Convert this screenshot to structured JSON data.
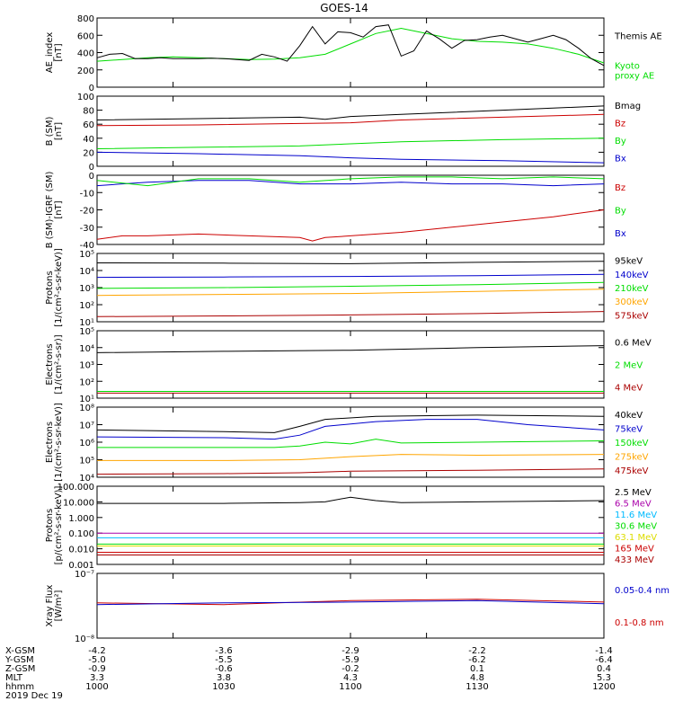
{
  "title": "GOES-14",
  "ephemeris": {
    "labels": [
      "X-GSM",
      "Y-GSM",
      "Z-GSM",
      "MLT",
      "hhmm",
      "2019 Dec 19"
    ],
    "columns": [
      [
        "-4.2",
        "-5.0",
        "-0.9",
        "3.3",
        "1000"
      ],
      [
        "-3.6",
        "-5.5",
        "-0.6",
        "3.8",
        "1030"
      ],
      [
        "-2.9",
        "-5.9",
        "-0.2",
        "4.3",
        "1100"
      ],
      [
        "-2.2",
        "-6.2",
        "0.1",
        "4.8",
        "1130"
      ],
      [
        "-1.4",
        "-6.4",
        "0.4",
        "5.3",
        "1200"
      ]
    ]
  },
  "colors": {
    "black": "#000000",
    "blue": "#0000cc",
    "green": "#00dd00",
    "red": "#cc0000",
    "orange": "#ffa500",
    "yellow": "#dddd00",
    "cyan": "#00bbff",
    "magenta": "#aa00aa",
    "darkred": "#aa0000"
  },
  "chart_data": [
    {
      "id": "ae",
      "type": "line",
      "ylabel": "AE_index\n[nT]",
      "ylim": [
        0,
        800
      ],
      "yscale": "linear",
      "yticks": [
        0,
        200,
        400,
        600,
        800
      ],
      "yticklabels": [
        "0",
        "200",
        "400",
        "600",
        "800"
      ],
      "xlim": [
        1000,
        1200
      ],
      "series": [
        {
          "name": "Kyoto\nproxy AE",
          "color": "green",
          "x": [
            1000,
            1010,
            1020,
            1030,
            1040,
            1050,
            1060,
            1070,
            1080,
            1090,
            1100,
            1110,
            1120,
            1130,
            1140,
            1150,
            1160,
            1170,
            1180,
            1190,
            1200
          ],
          "y": [
            300,
            320,
            340,
            350,
            340,
            330,
            320,
            325,
            340,
            380,
            500,
            620,
            680,
            620,
            560,
            530,
            520,
            500,
            450,
            380,
            280
          ]
        },
        {
          "name": "Themis AE",
          "color": "black",
          "x": [
            1000,
            1005,
            1010,
            1015,
            1020,
            1025,
            1030,
            1035,
            1040,
            1045,
            1050,
            1055,
            1060,
            1065,
            1070,
            1075,
            1080,
            1085,
            1090,
            1095,
            1100,
            1105,
            1110,
            1115,
            1120,
            1125,
            1130,
            1135,
            1140,
            1145,
            1150,
            1155,
            1160,
            1165,
            1170,
            1175,
            1180,
            1185,
            1190,
            1195,
            1200
          ],
          "y": [
            340,
            380,
            390,
            330,
            330,
            340,
            330,
            330,
            330,
            335,
            330,
            320,
            310,
            380,
            350,
            300,
            480,
            700,
            500,
            640,
            630,
            580,
            700,
            720,
            360,
            420,
            650,
            560,
            450,
            540,
            550,
            580,
            600,
            560,
            520,
            560,
            600,
            550,
            450,
            330,
            250
          ]
        }
      ]
    },
    {
      "id": "bsm",
      "type": "line",
      "ylabel": "B (SM)\n[nT]",
      "ylim": [
        0,
        100
      ],
      "yscale": "linear",
      "yticks": [
        0,
        20,
        40,
        60,
        80,
        100
      ],
      "yticklabels": [
        "0",
        "20",
        "40",
        "60",
        "80",
        "100"
      ],
      "xlim": [
        1000,
        1200
      ],
      "series": [
        {
          "name": "Bx",
          "color": "blue",
          "x": [
            1000,
            1040,
            1080,
            1100,
            1120,
            1160,
            1200
          ],
          "y": [
            20,
            18,
            15,
            12,
            10,
            8,
            5
          ]
        },
        {
          "name": "By",
          "color": "green",
          "x": [
            1000,
            1040,
            1080,
            1100,
            1120,
            1160,
            1200
          ],
          "y": [
            25,
            27,
            29,
            32,
            35,
            38,
            40
          ]
        },
        {
          "name": "Bz",
          "color": "red",
          "x": [
            1000,
            1040,
            1080,
            1100,
            1120,
            1160,
            1200
          ],
          "y": [
            58,
            59,
            61,
            62,
            66,
            70,
            74
          ]
        },
        {
          "name": "Bmag",
          "color": "black",
          "x": [
            1000,
            1040,
            1080,
            1090,
            1100,
            1120,
            1160,
            1200
          ],
          "y": [
            66,
            68,
            70,
            67,
            71,
            74,
            80,
            86
          ]
        }
      ]
    },
    {
      "id": "bigrf",
      "type": "line",
      "ylabel": "B (SM)-IGRF (SM)\n[nT]",
      "ylim": [
        -40,
        0
      ],
      "yscale": "linear",
      "yticks": [
        -40,
        -30,
        -20,
        -10,
        0
      ],
      "yticklabels": [
        "-40",
        "-30",
        "-20",
        "-10",
        "0"
      ],
      "xlim": [
        1000,
        1200
      ],
      "series": [
        {
          "name": "Bx",
          "color": "blue",
          "x": [
            1000,
            1020,
            1040,
            1060,
            1080,
            1100,
            1120,
            1140,
            1160,
            1180,
            1200
          ],
          "y": [
            -6,
            -4,
            -3,
            -3,
            -5,
            -5,
            -4,
            -5,
            -5,
            -6,
            -5
          ]
        },
        {
          "name": "By",
          "color": "green",
          "x": [
            1000,
            1020,
            1040,
            1060,
            1080,
            1100,
            1120,
            1140,
            1160,
            1180,
            1200
          ],
          "y": [
            -3,
            -6,
            -2,
            -2,
            -4,
            -2,
            -1,
            -1,
            -2,
            -1,
            -2
          ]
        },
        {
          "name": "Bz",
          "color": "red",
          "x": [
            1000,
            1010,
            1020,
            1040,
            1060,
            1080,
            1085,
            1090,
            1100,
            1120,
            1140,
            1160,
            1180,
            1200
          ],
          "y": [
            -37,
            -35,
            -35,
            -34,
            -35,
            -36,
            -38,
            -36,
            -35,
            -33,
            -30,
            -27,
            -24,
            -20
          ]
        }
      ]
    },
    {
      "id": "protons1",
      "type": "line",
      "ylabel": "Protons\n[1/(cm²-s-sr-keV)]",
      "ylim": [
        10,
        100000
      ],
      "yscale": "log",
      "yticks": [
        10,
        100,
        1000,
        10000,
        100000
      ],
      "yticklabels": [
        "10¹",
        "10²",
        "10³",
        "10⁴",
        "10⁵"
      ],
      "xlim": [
        1000,
        1200
      ],
      "series": [
        {
          "name": "575keV",
          "color": "darkred",
          "x": [
            1000,
            1050,
            1100,
            1150,
            1200
          ],
          "y": [
            20,
            22,
            25,
            30,
            40
          ]
        },
        {
          "name": "300keV",
          "color": "orange",
          "x": [
            1000,
            1050,
            1100,
            1150,
            1200
          ],
          "y": [
            350,
            400,
            450,
            600,
            800
          ]
        },
        {
          "name": "210keV",
          "color": "green",
          "x": [
            1000,
            1050,
            1100,
            1150,
            1200
          ],
          "y": [
            900,
            1000,
            1200,
            1500,
            2000
          ]
        },
        {
          "name": "140keV",
          "color": "blue",
          "x": [
            1000,
            1050,
            1100,
            1150,
            1200
          ],
          "y": [
            4000,
            4200,
            4500,
            5000,
            6000
          ]
        },
        {
          "name": "95keV",
          "color": "black",
          "x": [
            1000,
            1050,
            1100,
            1150,
            1200
          ],
          "y": [
            28000,
            27000,
            25000,
            30000,
            35000
          ]
        }
      ]
    },
    {
      "id": "electrons1",
      "type": "line",
      "ylabel": "Electrons\n[1/(cm²-s-sr)]",
      "ylim": [
        10,
        100000
      ],
      "yscale": "log",
      "yticks": [
        10,
        100,
        1000,
        10000,
        100000
      ],
      "yticklabels": [
        "10¹",
        "10²",
        "10³",
        "10⁴",
        "10⁵"
      ],
      "xlim": [
        1000,
        1200
      ],
      "series": [
        {
          "name": "4 MeV",
          "color": "darkred",
          "x": [
            1000,
            1050,
            1100,
            1150,
            1200
          ],
          "y": [
            20,
            20,
            20,
            20,
            20
          ]
        },
        {
          "name": "2 MeV",
          "color": "green",
          "x": [
            1000,
            1050,
            1100,
            1150,
            1200
          ],
          "y": [
            25,
            25,
            25,
            25,
            25
          ]
        },
        {
          "name": "0.6 MeV",
          "color": "black",
          "x": [
            1000,
            1050,
            1100,
            1150,
            1200
          ],
          "y": [
            5000,
            6000,
            7000,
            10000,
            13000
          ]
        }
      ]
    },
    {
      "id": "electrons2",
      "type": "line",
      "ylabel": "Electrons\n[1/(cm²-s-sr-keV)]",
      "ylim": [
        10000,
        100000000
      ],
      "yscale": "log",
      "yticks": [
        10000,
        100000,
        1000000,
        10000000,
        100000000
      ],
      "yticklabels": [
        "10⁴",
        "10⁵",
        "10⁶",
        "10⁷",
        "10⁸"
      ],
      "xlim": [
        1000,
        1200
      ],
      "series": [
        {
          "name": "475keV",
          "color": "darkred",
          "x": [
            1000,
            1050,
            1080,
            1100,
            1150,
            1200
          ],
          "y": [
            15000,
            16000,
            18000,
            22000,
            25000,
            30000
          ]
        },
        {
          "name": "275keV",
          "color": "orange",
          "x": [
            1000,
            1050,
            1080,
            1100,
            1120,
            1150,
            1200
          ],
          "y": [
            90000,
            90000,
            100000,
            150000,
            200000,
            180000,
            200000
          ]
        },
        {
          "name": "150keV",
          "color": "green",
          "x": [
            1000,
            1050,
            1070,
            1080,
            1090,
            1100,
            1110,
            1120,
            1150,
            1200
          ],
          "y": [
            500000,
            500000,
            500000,
            600000,
            1000000,
            800000,
            1500000,
            900000,
            1000000,
            1200000
          ]
        },
        {
          "name": "75keV",
          "color": "blue",
          "x": [
            1000,
            1050,
            1070,
            1080,
            1090,
            1110,
            1130,
            1150,
            1170,
            1200
          ],
          "y": [
            2000000,
            1800000,
            1500000,
            2500000,
            8000000,
            15000000,
            20000000,
            20000000,
            10000000,
            5000000
          ]
        },
        {
          "name": "40keV",
          "color": "black",
          "x": [
            1000,
            1050,
            1070,
            1080,
            1090,
            1110,
            1150,
            1200
          ],
          "y": [
            5000000,
            4000000,
            3500000,
            8000000,
            20000000,
            30000000,
            35000000,
            30000000
          ]
        }
      ]
    },
    {
      "id": "protons2",
      "type": "line",
      "ylabel": "Protons\n[p/(cm²-s-sr-keV)]",
      "ylim": [
        0.001,
        100
      ],
      "yscale": "log",
      "yticks": [
        0.001,
        0.01,
        0.1,
        1,
        10,
        100
      ],
      "yticklabels": [
        "0.001",
        "0.010",
        "0.100",
        "1.000",
        "10.000",
        "100.000"
      ],
      "xlim": [
        1000,
        1200
      ],
      "series": [
        {
          "name": "433 MeV",
          "color": "darkred",
          "x": [
            1000,
            1200
          ],
          "y": [
            0.004,
            0.004
          ]
        },
        {
          "name": "165 MeV",
          "color": "red",
          "x": [
            1000,
            1200
          ],
          "y": [
            0.006,
            0.006
          ]
        },
        {
          "name": "63.1 MeV",
          "color": "yellow",
          "x": [
            1000,
            1200
          ],
          "y": [
            0.015,
            0.015
          ]
        },
        {
          "name": "30.6 MeV",
          "color": "green",
          "x": [
            1000,
            1200
          ],
          "y": [
            0.02,
            0.02
          ]
        },
        {
          "name": "11.6 MeV",
          "color": "cyan",
          "x": [
            1000,
            1200
          ],
          "y": [
            0.05,
            0.05
          ]
        },
        {
          "name": "6.5 MeV",
          "color": "magenta",
          "x": [
            1000,
            1200
          ],
          "y": [
            0.1,
            0.1
          ]
        },
        {
          "name": "2.5 MeV",
          "color": "black",
          "x": [
            1000,
            1050,
            1080,
            1090,
            1100,
            1110,
            1120,
            1150,
            1200
          ],
          "y": [
            8,
            8,
            9,
            10,
            20,
            12,
            9,
            10,
            12
          ]
        }
      ]
    },
    {
      "id": "xray",
      "type": "line",
      "ylabel": "Xray Flux\n[W/m²]",
      "ylim": [
        1e-08,
        1e-07
      ],
      "yscale": "log",
      "yticks": [
        1e-08,
        1e-07
      ],
      "yticklabels": [
        "10⁻⁸",
        "10⁻⁷"
      ],
      "xlim": [
        1000,
        1200
      ],
      "series": [
        {
          "name": "0.1-0.8 nm",
          "color": "red",
          "x": [
            1000,
            1050,
            1100,
            1150,
            1200
          ],
          "y": [
            3.5e-08,
            3.3e-08,
            3.8e-08,
            4e-08,
            3.6e-08
          ]
        },
        {
          "name": "0.05-0.4 nm",
          "color": "blue",
          "x": [
            1000,
            1050,
            1100,
            1150,
            1200
          ],
          "y": [
            3.3e-08,
            3.5e-08,
            3.6e-08,
            3.8e-08,
            3.4e-08
          ]
        }
      ]
    }
  ]
}
